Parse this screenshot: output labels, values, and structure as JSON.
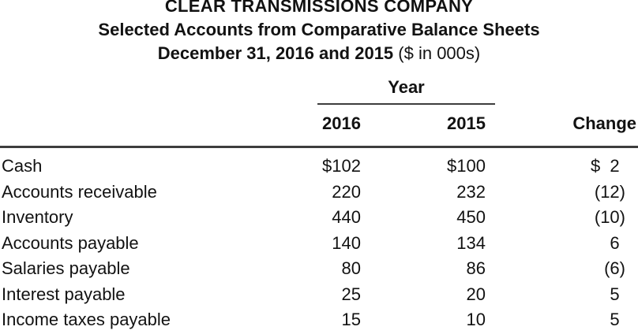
{
  "document": {
    "company_name": "CLEAR TRANSMISSIONS COMPANY",
    "statement_title": "Selected Accounts from Comparative Balance Sheets",
    "date_line": "December 31, 2016 and 2015",
    "units_note": " ($ in 000s)"
  },
  "table": {
    "year_group_label": "Year",
    "column_headers": {
      "y2016": "2016",
      "y2015": "2015",
      "change": "Change"
    },
    "rows": [
      {
        "label": "Cash",
        "y2016": "$102",
        "y2015": "$100",
        "change": "$  2"
      },
      {
        "label": "Accounts receivable",
        "y2016": "220",
        "y2015": "232",
        "change": "(12)"
      },
      {
        "label": "Inventory",
        "y2016": "440",
        "y2015": "450",
        "change": "(10)"
      },
      {
        "label": "Accounts payable",
        "y2016": "140",
        "y2015": "134",
        "change": "6"
      },
      {
        "label": "Salaries payable",
        "y2016": "80",
        "y2015": "86",
        "change": "(6)"
      },
      {
        "label": "Interest payable",
        "y2016": "25",
        "y2015": "20",
        "change": "5"
      },
      {
        "label": "Income taxes payable",
        "y2016": "15",
        "y2015": "10",
        "change": "5"
      }
    ]
  },
  "colors": {
    "text": "#121212",
    "rule": "#3d3d3d",
    "background": "#ffffff"
  }
}
